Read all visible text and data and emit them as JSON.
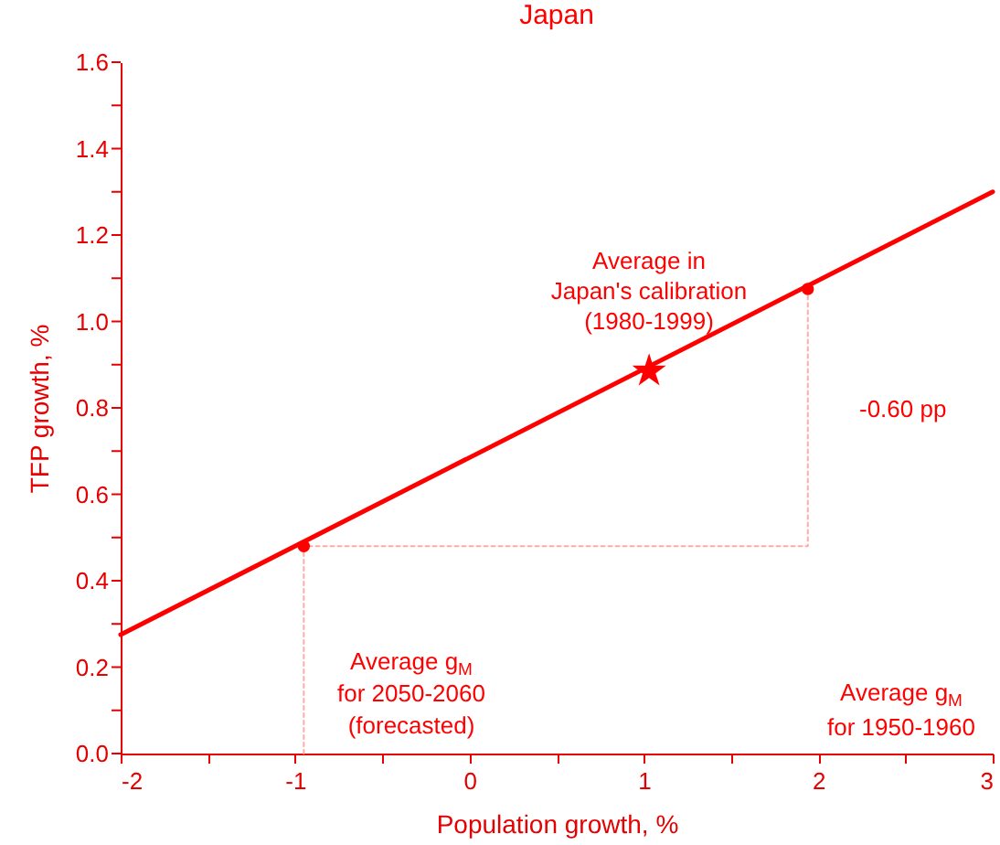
{
  "chart_data": {
    "type": "line",
    "title": "Japan",
    "xlabel": "Population growth, %",
    "ylabel": "TFP growth, %",
    "xlim": [
      -2,
      3
    ],
    "ylim": [
      0,
      1.6
    ],
    "xticks": [
      -2,
      {
        "value": -1.5,
        "label": null
      },
      -1,
      {
        "value": -0.5,
        "label": null
      },
      0,
      {
        "value": 0.5,
        "label": null
      },
      1,
      {
        "value": 1.5,
        "label": null
      },
      2,
      {
        "value": 2.5,
        "label": null
      },
      3
    ],
    "yticks": [
      {
        "value": 0,
        "label": "0.0"
      },
      {
        "value": 0.1,
        "label": null
      },
      {
        "value": 0.2,
        "label": "0.2"
      },
      {
        "value": 0.3,
        "label": null
      },
      {
        "value": 0.4,
        "label": "0.4"
      },
      {
        "value": 0.5,
        "label": null
      },
      {
        "value": 0.6,
        "label": "0.6"
      },
      {
        "value": 0.7,
        "label": null
      },
      {
        "value": 0.8,
        "label": "0.8"
      },
      {
        "value": 0.9,
        "label": null
      },
      {
        "value": 1,
        "label": "1.0"
      },
      {
        "value": 1.1,
        "label": null
      },
      {
        "value": 1.2,
        "label": "1.2"
      },
      {
        "value": 1.3,
        "label": null
      },
      {
        "value": 1.4,
        "label": "1.4"
      },
      {
        "value": 1.5,
        "label": null
      },
      {
        "value": 1.6,
        "label": "1.6"
      }
    ],
    "grid": false,
    "series": [
      {
        "type": "line",
        "color": "#ffaaaa",
        "line_style": "dotted",
        "marker": "none",
        "x": [
          -0.95,
          -0.95,
          1.94,
          1.94
        ],
        "values": [
          0,
          0.48,
          0.48,
          1.075
        ]
      },
      {
        "type": "line",
        "color": "#ff0000",
        "line_style": "solid",
        "marker": "none",
        "x": [
          -2,
          3
        ],
        "values": [
          0.275,
          1.3
        ]
      },
      {
        "type": "scatter",
        "color": "#ff0000",
        "marker": "circle",
        "x": [
          -0.95,
          1.94
        ],
        "values": [
          0.48,
          1.075
        ]
      },
      {
        "type": "scatter",
        "color": "#ff0000",
        "marker": "star",
        "x": [
          1.03
        ],
        "values": [
          0.885
        ]
      }
    ],
    "annotations": [
      "Average in\nJapan's calibration\n(1980-1999)",
      "-0.60 pp",
      "Average g$_{M}$\nfor 2050-2060\n(forecasted)",
      "Average g$_{M}$\nfor 1950-1960"
    ]
  }
}
